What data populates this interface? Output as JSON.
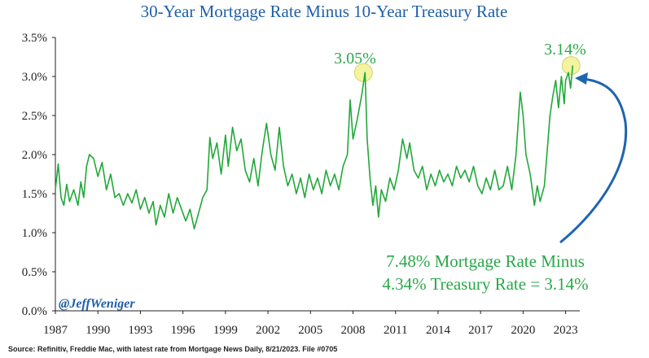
{
  "chart_data": {
    "type": "line",
    "title": "30-Year Mortgage Rate Minus 10-Year Treasury Rate",
    "xlabel": "",
    "ylabel": "",
    "ylim": [
      0,
      3.5
    ],
    "xlim": [
      1987,
      2024
    ],
    "grid": false,
    "legend": "none",
    "x_ticks": [
      "1987",
      "1990",
      "1993",
      "1996",
      "1999",
      "2002",
      "2005",
      "2008",
      "2011",
      "2014",
      "2017",
      "2020",
      "2023"
    ],
    "y_ticks": [
      "0.0%",
      "0.5%",
      "1.0%",
      "1.5%",
      "2.0%",
      "2.5%",
      "3.0%",
      "3.5%"
    ],
    "series": [
      {
        "name": "",
        "color": "#22a83a",
        "points": [
          [
            1987.0,
            1.55
          ],
          [
            1987.2,
            1.88
          ],
          [
            1987.4,
            1.45
          ],
          [
            1987.6,
            1.35
          ],
          [
            1987.8,
            1.62
          ],
          [
            1988.0,
            1.4
          ],
          [
            1988.3,
            1.55
          ],
          [
            1988.6,
            1.35
          ],
          [
            1988.8,
            1.65
          ],
          [
            1989.0,
            1.45
          ],
          [
            1989.2,
            1.85
          ],
          [
            1989.4,
            2.0
          ],
          [
            1989.7,
            1.95
          ],
          [
            1990.0,
            1.72
          ],
          [
            1990.3,
            1.9
          ],
          [
            1990.6,
            1.55
          ],
          [
            1990.9,
            1.75
          ],
          [
            1991.2,
            1.45
          ],
          [
            1991.5,
            1.5
          ],
          [
            1991.8,
            1.35
          ],
          [
            1992.1,
            1.5
          ],
          [
            1992.4,
            1.38
          ],
          [
            1992.7,
            1.55
          ],
          [
            1993.0,
            1.3
          ],
          [
            1993.3,
            1.45
          ],
          [
            1993.6,
            1.25
          ],
          [
            1993.9,
            1.4
          ],
          [
            1994.1,
            1.1
          ],
          [
            1994.4,
            1.35
          ],
          [
            1994.7,
            1.2
          ],
          [
            1995.0,
            1.5
          ],
          [
            1995.3,
            1.25
          ],
          [
            1995.6,
            1.45
          ],
          [
            1995.9,
            1.3
          ],
          [
            1996.2,
            1.15
          ],
          [
            1996.5,
            1.3
          ],
          [
            1996.8,
            1.05
          ],
          [
            1997.1,
            1.25
          ],
          [
            1997.4,
            1.45
          ],
          [
            1997.7,
            1.55
          ],
          [
            1997.9,
            2.22
          ],
          [
            1998.1,
            1.95
          ],
          [
            1998.4,
            2.15
          ],
          [
            1998.7,
            1.75
          ],
          [
            1999.0,
            2.25
          ],
          [
            1999.2,
            1.85
          ],
          [
            1999.5,
            2.35
          ],
          [
            1999.8,
            2.05
          ],
          [
            2000.1,
            2.2
          ],
          [
            2000.4,
            1.8
          ],
          [
            2000.7,
            1.65
          ],
          [
            2001.0,
            1.95
          ],
          [
            2001.3,
            1.6
          ],
          [
            2001.6,
            2.05
          ],
          [
            2001.9,
            2.4
          ],
          [
            2002.2,
            2.0
          ],
          [
            2002.5,
            1.8
          ],
          [
            2002.8,
            2.35
          ],
          [
            2003.1,
            1.85
          ],
          [
            2003.4,
            1.6
          ],
          [
            2003.7,
            1.75
          ],
          [
            2004.0,
            1.5
          ],
          [
            2004.3,
            1.7
          ],
          [
            2004.6,
            1.45
          ],
          [
            2004.9,
            1.75
          ],
          [
            2005.2,
            1.55
          ],
          [
            2005.5,
            1.7
          ],
          [
            2005.8,
            1.5
          ],
          [
            2006.1,
            1.8
          ],
          [
            2006.4,
            1.6
          ],
          [
            2006.7,
            1.75
          ],
          [
            2007.0,
            1.55
          ],
          [
            2007.3,
            1.85
          ],
          [
            2007.6,
            2.0
          ],
          [
            2007.8,
            2.7
          ],
          [
            2008.0,
            2.2
          ],
          [
            2008.3,
            2.45
          ],
          [
            2008.6,
            2.75
          ],
          [
            2008.85,
            3.05
          ],
          [
            2009.0,
            2.2
          ],
          [
            2009.2,
            1.7
          ],
          [
            2009.4,
            1.35
          ],
          [
            2009.6,
            1.6
          ],
          [
            2009.8,
            1.2
          ],
          [
            2010.0,
            1.55
          ],
          [
            2010.3,
            1.4
          ],
          [
            2010.6,
            1.7
          ],
          [
            2010.9,
            1.55
          ],
          [
            2011.2,
            1.8
          ],
          [
            2011.5,
            2.2
          ],
          [
            2011.8,
            1.95
          ],
          [
            2012.0,
            2.15
          ],
          [
            2012.3,
            1.8
          ],
          [
            2012.6,
            1.7
          ],
          [
            2012.9,
            1.85
          ],
          [
            2013.2,
            1.55
          ],
          [
            2013.5,
            1.75
          ],
          [
            2013.8,
            1.6
          ],
          [
            2014.1,
            1.8
          ],
          [
            2014.4,
            1.65
          ],
          [
            2014.7,
            1.75
          ],
          [
            2015.0,
            1.6
          ],
          [
            2015.3,
            1.85
          ],
          [
            2015.6,
            1.7
          ],
          [
            2015.9,
            1.8
          ],
          [
            2016.2,
            1.65
          ],
          [
            2016.5,
            1.85
          ],
          [
            2016.8,
            1.6
          ],
          [
            2017.1,
            1.5
          ],
          [
            2017.4,
            1.7
          ],
          [
            2017.7,
            1.55
          ],
          [
            2018.0,
            1.8
          ],
          [
            2018.3,
            1.55
          ],
          [
            2018.6,
            1.6
          ],
          [
            2018.9,
            1.85
          ],
          [
            2019.2,
            1.55
          ],
          [
            2019.5,
            2.0
          ],
          [
            2019.8,
            2.8
          ],
          [
            2020.0,
            2.5
          ],
          [
            2020.2,
            2.0
          ],
          [
            2020.5,
            1.75
          ],
          [
            2020.8,
            1.35
          ],
          [
            2021.0,
            1.6
          ],
          [
            2021.2,
            1.4
          ],
          [
            2021.5,
            1.6
          ],
          [
            2021.7,
            2.05
          ],
          [
            2021.9,
            2.5
          ],
          [
            2022.1,
            2.75
          ],
          [
            2022.3,
            2.95
          ],
          [
            2022.5,
            2.6
          ],
          [
            2022.7,
            3.0
          ],
          [
            2022.9,
            2.65
          ],
          [
            2023.0,
            2.95
          ],
          [
            2023.2,
            3.05
          ],
          [
            2023.35,
            2.85
          ],
          [
            2023.5,
            3.14
          ]
        ]
      }
    ],
    "annotations": {
      "peak_2008": {
        "label": "3.05%",
        "x": 2008.85,
        "y": 3.05
      },
      "peak_2023": {
        "label": "3.14%",
        "x": 2023.5,
        "y": 3.14
      },
      "note_line1": "7.48% Mortgage Rate Minus",
      "note_line2": "4.34% Treasury Rate = 3.14%",
      "watermark": "@JeffWeniger"
    },
    "source": "Source: Refinitiv, Freddie Mac, with latest rate from Mortgage News Daily, 8/21/2023. File #0705",
    "colors": {
      "title": "#1f5fa8",
      "line": "#22a83a",
      "annotation_text": "#2aa84a",
      "highlight": "#f3f3a0",
      "highlight_stroke": "#d4d46a",
      "arrow": "#1f64b0",
      "axis": "#222222"
    }
  }
}
